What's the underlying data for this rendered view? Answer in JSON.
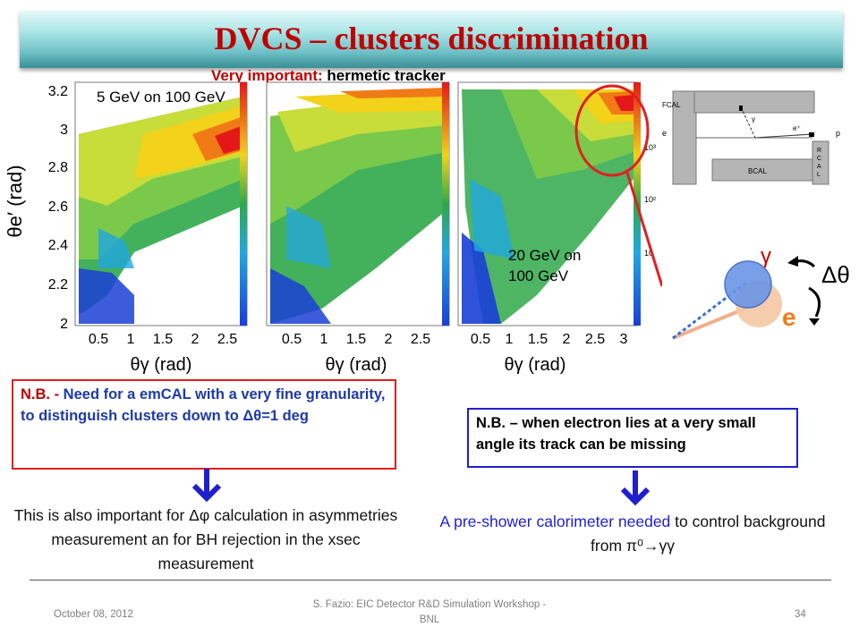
{
  "slide": {
    "title": "DVCS – clusters  discrimination",
    "subtitle_red": "Very important:",
    "subtitle_black": " hermetic tracker"
  },
  "plots": {
    "y_axis_label": "θe′ (rad)",
    "x_axis_label": "θγ (rad)",
    "y_ticks": [
      "2",
      "2.2",
      "2.4",
      "2.6",
      "2.8",
      "3",
      "3.2"
    ],
    "x_ticks_a": [
      "0.5",
      "1",
      "1.5",
      "2",
      "2.5"
    ],
    "x_ticks_c": [
      "0.5",
      "1",
      "1.5",
      "2",
      "2.5",
      "3"
    ],
    "panel1_label": "5 GeV on 100 GeV",
    "panel3_label_1": "20 GeV on",
    "panel3_label_2": "100 GeV",
    "colorbar_ticks": [
      "10³",
      "10²",
      "10"
    ]
  },
  "detector": {
    "fcal": "FCAL",
    "bcal": "BCAL",
    "rcal": [
      "R",
      "C",
      "A",
      "L"
    ],
    "e_left": "e",
    "p_right": "p",
    "gamma": "γ",
    "e_plus": "e⁺"
  },
  "sketch": {
    "gamma_label": "γ",
    "delta_theta": "Δθ",
    "e_label": "e"
  },
  "note_left": {
    "nb": "N.B. - ",
    "line": "Need for a emCAL with a very fine granularity, to distinguish clusters down to Δθ=1 deg"
  },
  "note_right": {
    "text": "N.B. – when electron lies at a very small angle its track can be missing"
  },
  "para_left": "This is also important for Δφ calculation in asymmetries measurement an for BH rejection in the xsec measurement",
  "para_right_blue": "A pre-shower calorimeter needed",
  "para_right_black": " to control background from π⁰→γγ",
  "footer": {
    "date": "October 08, 2012",
    "center": "S. Fazio: EIC Detector R&D Simulation Workshop - BNL",
    "page": "34"
  },
  "colors": {
    "title": "#c00000",
    "accent_red": "#e02020",
    "accent_blue": "#1f1fd0",
    "heat_low": "#1a3fd6",
    "heat_high": "#e41818"
  }
}
